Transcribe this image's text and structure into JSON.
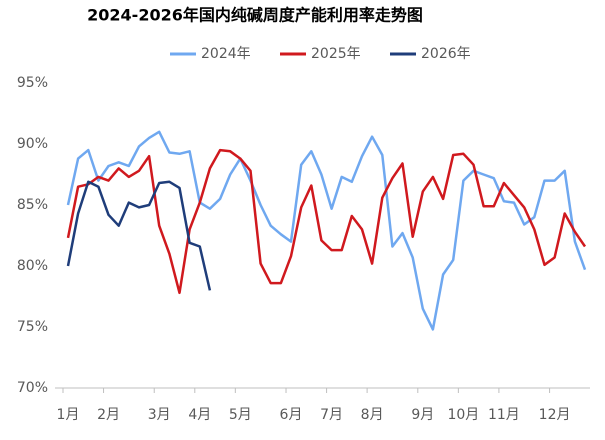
{
  "chart_data": {
    "type": "line",
    "title": "2024-2026年国内纯碱周度产能利用率走势图",
    "categories": [
      "1月",
      null,
      null,
      null,
      "2月",
      null,
      null,
      null,
      null,
      "3月",
      null,
      null,
      null,
      "4月",
      null,
      null,
      null,
      "5月",
      null,
      null,
      null,
      null,
      "6月",
      null,
      null,
      null,
      "7月",
      null,
      null,
      null,
      "8月",
      null,
      null,
      null,
      null,
      "9月",
      null,
      null,
      null,
      "10月",
      null,
      null,
      null,
      "11月",
      null,
      null,
      null,
      null,
      "12月",
      null,
      null,
      null
    ],
    "series": [
      {
        "name": "2024年",
        "color": "#6fa8f0",
        "values": [
          85.0,
          88.8,
          89.5,
          87.0,
          88.2,
          88.5,
          88.2,
          89.8,
          90.5,
          91.0,
          89.3,
          89.2,
          89.4,
          85.2,
          84.7,
          85.5,
          87.5,
          88.8,
          87.0,
          85.0,
          83.3,
          82.6,
          82.0,
          88.3,
          89.4,
          87.5,
          84.7,
          87.3,
          86.9,
          89.0,
          90.6,
          89.1,
          81.6,
          82.7,
          80.7,
          76.5,
          74.8,
          79.3,
          80.5,
          87.0,
          87.8,
          87.5,
          87.2,
          85.3,
          85.2,
          83.4,
          84.0,
          87.0,
          87.0,
          87.8,
          82.0,
          79.7
        ]
      },
      {
        "name": "2025年",
        "color": "#d0191e",
        "values": [
          82.3,
          86.5,
          86.7,
          87.3,
          87.0,
          88.0,
          87.3,
          87.8,
          89.0,
          83.3,
          81.0,
          77.8,
          83.0,
          85.2,
          88.0,
          89.5,
          89.4,
          88.8,
          87.8,
          80.2,
          78.6,
          78.6,
          80.8,
          84.8,
          86.6,
          82.1,
          81.3,
          81.3,
          84.1,
          83.0,
          80.2,
          85.6,
          87.2,
          88.4,
          82.4,
          86.1,
          87.3,
          85.5,
          89.1,
          89.2,
          88.3,
          84.9,
          84.9,
          86.8,
          85.8,
          84.8,
          83.0,
          80.1,
          80.7,
          84.3,
          82.8,
          81.6
        ]
      },
      {
        "name": "2026年",
        "color": "#1f3d7a",
        "values": [
          80.0,
          84.3,
          86.9,
          86.5,
          84.2,
          83.3,
          85.2,
          84.8,
          85.0,
          86.8,
          86.9,
          86.4,
          81.9,
          81.6,
          78.0,
          null,
          null,
          null,
          null,
          null,
          null,
          null,
          null,
          null,
          null,
          null,
          null,
          null,
          null,
          null,
          null,
          null,
          null,
          null,
          null,
          null,
          null,
          null,
          null,
          null,
          null,
          null,
          null,
          null,
          null,
          null,
          null,
          null,
          null,
          null,
          null,
          null
        ]
      }
    ],
    "ylim": [
      70,
      95
    ],
    "yticks": [
      {
        "value": 70,
        "label": "70%"
      },
      {
        "value": 75,
        "label": "75%"
      },
      {
        "value": 80,
        "label": "80%"
      },
      {
        "value": 85,
        "label": "85%"
      },
      {
        "value": 90,
        "label": "90%"
      },
      {
        "value": 95,
        "label": "95%"
      }
    ],
    "grid": false,
    "legend": "top"
  }
}
